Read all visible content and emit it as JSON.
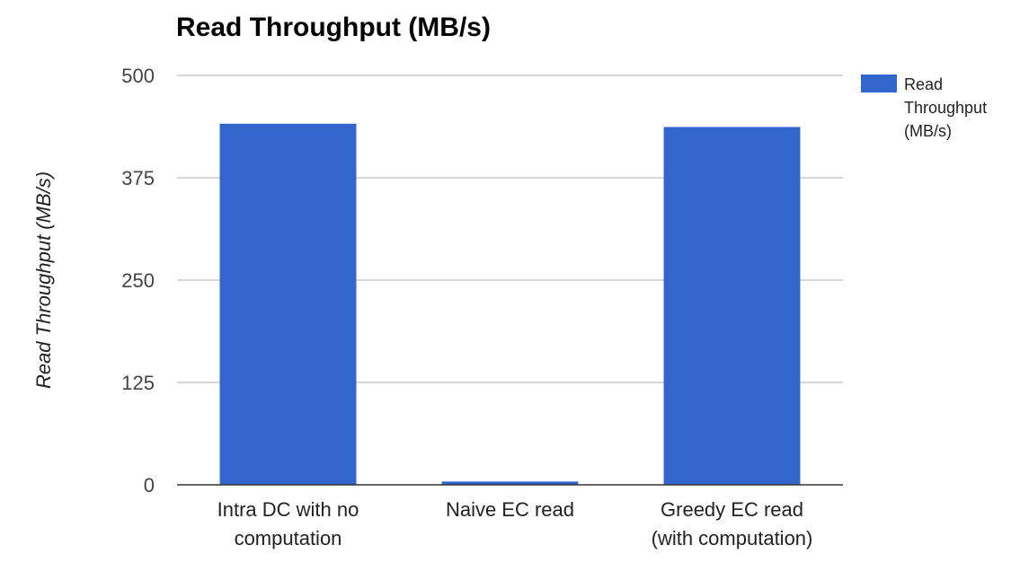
{
  "chart_data": {
    "type": "bar",
    "title": "Read Throughput (MB/s)",
    "xlabel": "",
    "ylabel": "Read Throughput (MB/s)",
    "categories": [
      [
        "Intra DC with no",
        "computation"
      ],
      [
        "Naive EC read"
      ],
      [
        "Greedy EC read",
        "(with computation)"
      ]
    ],
    "series": [
      {
        "name": "Read Throughput (MB/s)",
        "legend_lines": [
          "Read",
          "Throughput",
          "(MB/s)"
        ],
        "color": "#3366cc",
        "values": [
          441,
          4,
          437
        ]
      }
    ],
    "ylim": [
      0,
      500
    ],
    "yticks": [
      0,
      125,
      250,
      375,
      500
    ],
    "grid": true,
    "legend_position": "right"
  }
}
